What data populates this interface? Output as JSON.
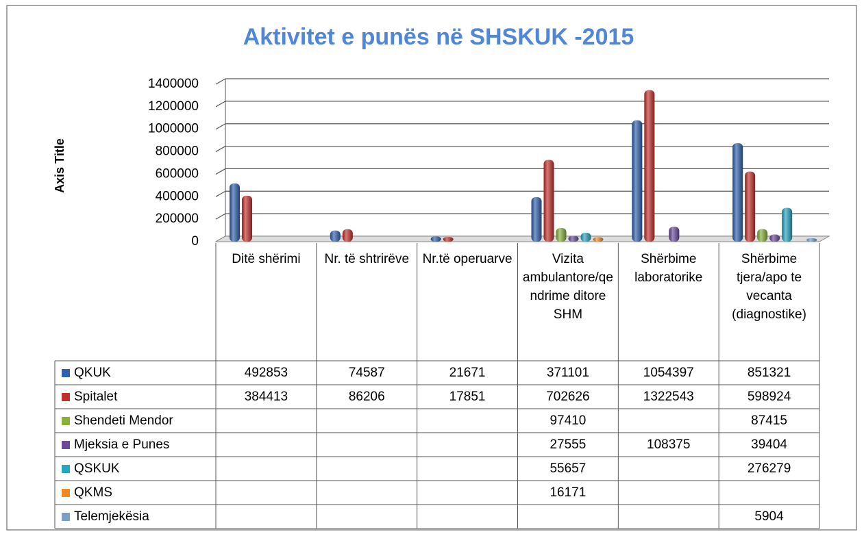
{
  "chart_data": {
    "type": "bar",
    "title": "Aktivitet e punës në SHSKUK -2015",
    "y_axis_label": "Axis Title",
    "categories": [
      "Ditë shërimi",
      "Nr. të shtrirëve",
      "Nr.të operuarve",
      "Vizita ambulantore/qendrime ditore SHM",
      "Shërbime laboratorike",
      "Shërbime tjera/apo te vecanta (diagnostike)"
    ],
    "series": [
      {
        "name": "QKUK",
        "color": "#2f62ad",
        "values": [
          492853,
          74587,
          21671,
          371101,
          1054397,
          851321
        ]
      },
      {
        "name": "Spitalet",
        "color": "#c3312c",
        "values": [
          384413,
          86206,
          17851,
          702626,
          1322543,
          598924
        ]
      },
      {
        "name": "Shendeti Mendor",
        "color": "#86b33a",
        "values": [
          null,
          null,
          null,
          97410,
          null,
          87415
        ]
      },
      {
        "name": "Mjeksia e Punes",
        "color": "#6b4a9a",
        "values": [
          null,
          null,
          null,
          27555,
          108375,
          39404
        ]
      },
      {
        "name": "QSKUK",
        "color": "#25a5c0",
        "values": [
          null,
          null,
          null,
          55657,
          null,
          276279
        ]
      },
      {
        "name": "QKMS",
        "color": "#f08a24",
        "values": [
          null,
          null,
          null,
          16171,
          null,
          null
        ]
      },
      {
        "name": "Telemjekësia",
        "color": "#7a9fc8",
        "values": [
          null,
          null,
          null,
          null,
          null,
          5904
        ]
      }
    ],
    "ylim": [
      0,
      1400000
    ],
    "yticks": [
      0,
      200000,
      400000,
      600000,
      800000,
      1000000,
      1200000,
      1400000
    ],
    "grid": true
  }
}
